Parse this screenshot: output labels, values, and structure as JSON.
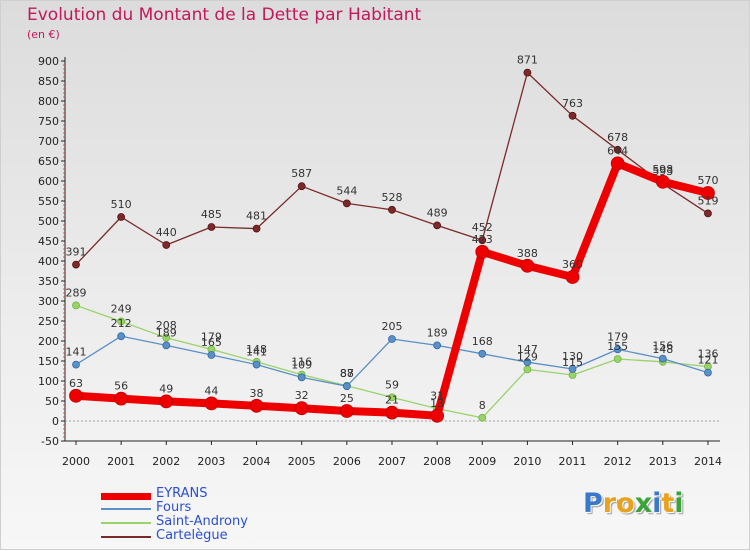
{
  "title": "Evolution du Montant de la Dette par Habitant",
  "unit": "(en €)",
  "logo": {
    "letters": [
      "P",
      "r",
      "o",
      "x",
      "i",
      "t",
      "i"
    ],
    "colors": [
      "#3a78c9",
      "#e8a21b",
      "#e8a21b",
      "#3aa33a",
      "#3a78c9",
      "#e8a21b",
      "#3aa33a"
    ]
  },
  "chart_data": {
    "type": "line",
    "title": "Evolution du Montant de la Dette par Habitant",
    "ylabel": "(en €)",
    "ylim": [
      -50,
      900
    ],
    "yticks": [
      -50,
      0,
      50,
      100,
      150,
      200,
      250,
      300,
      350,
      400,
      450,
      500,
      550,
      600,
      650,
      700,
      750,
      800,
      850,
      900
    ],
    "x": [
      "2000",
      "2001",
      "2002",
      "2003",
      "2004",
      "2005",
      "2006",
      "2007",
      "2008",
      "2009",
      "2010",
      "2011",
      "2012",
      "2013",
      "2014"
    ],
    "legend_position": "bottom-left",
    "grid": false,
    "series": [
      {
        "name": "EYRANS",
        "color": "#ee0000",
        "width": 8,
        "radius": 6.5,
        "values": [
          63,
          56,
          49,
          44,
          38,
          32,
          25,
          21,
          13,
          423,
          388,
          360,
          644,
          598,
          570
        ]
      },
      {
        "name": "Fours",
        "color": "#5b8fc7",
        "width": 1.3,
        "radius": 3.5,
        "values": [
          141,
          212,
          189,
          165,
          141,
          109,
          87,
          205,
          189,
          168,
          147,
          130,
          179,
          156,
          121
        ]
      },
      {
        "name": "Saint-Androny",
        "color": "#9ad36a",
        "width": 1.3,
        "radius": 3.5,
        "values": [
          289,
          249,
          208,
          179,
          148,
          116,
          88,
          59,
          31,
          8,
          129,
          115,
          155,
          148,
          136
        ]
      },
      {
        "name": "Cartelègue",
        "color": "#7a2a2a",
        "width": 1.3,
        "radius": 3.5,
        "values": [
          391,
          510,
          440,
          485,
          481,
          587,
          544,
          528,
          489,
          452,
          871,
          763,
          678,
          593,
          519
        ]
      }
    ],
    "label_order": [
      "Cartelègue",
      "Saint-Androny",
      "Fours",
      "EYRANS"
    ]
  }
}
